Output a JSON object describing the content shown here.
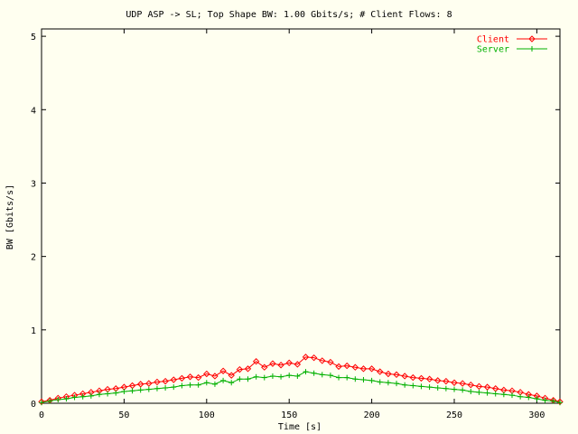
{
  "chart_data": {
    "type": "line",
    "title": "UDP ASP -> SL; Top Shape BW: 1.00 Gbits/s; # Client Flows: 8",
    "xlabel": "Time [s]",
    "ylabel": "BW [Gbits/s]",
    "xlim": [
      0,
      314
    ],
    "ylim": [
      0,
      5.1
    ],
    "xticks": [
      0,
      50,
      100,
      150,
      200,
      250,
      300
    ],
    "yticks": [
      0,
      1,
      2,
      3,
      4,
      5
    ],
    "xtick_labels": [
      "0",
      "50",
      "100",
      "150",
      "200",
      "250",
      "300"
    ],
    "ytick_labels": [
      "0",
      "1",
      "2",
      "3",
      "4",
      "5"
    ],
    "grid": false,
    "legend_position": "top-right",
    "series": [
      {
        "name": "Client",
        "color": "#ff0000",
        "marker": "diamond",
        "x": [
          0,
          5,
          10,
          15,
          20,
          25,
          30,
          35,
          40,
          45,
          50,
          55,
          60,
          65,
          70,
          75,
          80,
          85,
          90,
          95,
          100,
          105,
          110,
          115,
          120,
          125,
          130,
          135,
          140,
          145,
          150,
          155,
          160,
          165,
          170,
          175,
          180,
          185,
          190,
          195,
          200,
          205,
          210,
          215,
          220,
          225,
          230,
          235,
          240,
          245,
          250,
          255,
          260,
          265,
          270,
          275,
          280,
          285,
          290,
          295,
          300,
          305,
          310,
          314
        ],
        "y": [
          0.02,
          0.04,
          0.07,
          0.09,
          0.11,
          0.13,
          0.15,
          0.17,
          0.19,
          0.2,
          0.22,
          0.24,
          0.26,
          0.27,
          0.29,
          0.3,
          0.32,
          0.34,
          0.36,
          0.35,
          0.4,
          0.37,
          0.44,
          0.38,
          0.46,
          0.47,
          0.57,
          0.49,
          0.54,
          0.52,
          0.55,
          0.53,
          0.63,
          0.62,
          0.58,
          0.56,
          0.5,
          0.51,
          0.49,
          0.47,
          0.47,
          0.43,
          0.4,
          0.39,
          0.37,
          0.35,
          0.34,
          0.33,
          0.31,
          0.3,
          0.28,
          0.27,
          0.25,
          0.23,
          0.22,
          0.2,
          0.18,
          0.17,
          0.15,
          0.12,
          0.1,
          0.07,
          0.04,
          0.02
        ]
      },
      {
        "name": "Server",
        "color": "#00b000",
        "marker": "plus",
        "x": [
          0,
          5,
          10,
          15,
          20,
          25,
          30,
          35,
          40,
          45,
          50,
          55,
          60,
          65,
          70,
          75,
          80,
          85,
          90,
          95,
          100,
          105,
          110,
          115,
          120,
          125,
          130,
          135,
          140,
          145,
          150,
          155,
          160,
          165,
          170,
          175,
          180,
          185,
          190,
          195,
          200,
          205,
          210,
          215,
          220,
          225,
          230,
          235,
          240,
          245,
          250,
          255,
          260,
          265,
          270,
          275,
          280,
          285,
          290,
          295,
          300,
          305,
          310,
          314
        ],
        "y": [
          0.01,
          0.03,
          0.05,
          0.06,
          0.08,
          0.09,
          0.1,
          0.12,
          0.13,
          0.14,
          0.16,
          0.17,
          0.18,
          0.19,
          0.2,
          0.21,
          0.22,
          0.24,
          0.25,
          0.25,
          0.28,
          0.26,
          0.31,
          0.28,
          0.33,
          0.33,
          0.36,
          0.35,
          0.37,
          0.36,
          0.38,
          0.37,
          0.43,
          0.41,
          0.39,
          0.38,
          0.35,
          0.35,
          0.33,
          0.32,
          0.31,
          0.29,
          0.28,
          0.27,
          0.25,
          0.24,
          0.23,
          0.22,
          0.21,
          0.2,
          0.19,
          0.18,
          0.16,
          0.15,
          0.14,
          0.13,
          0.12,
          0.11,
          0.09,
          0.08,
          0.06,
          0.04,
          0.03,
          0.01
        ]
      }
    ]
  }
}
